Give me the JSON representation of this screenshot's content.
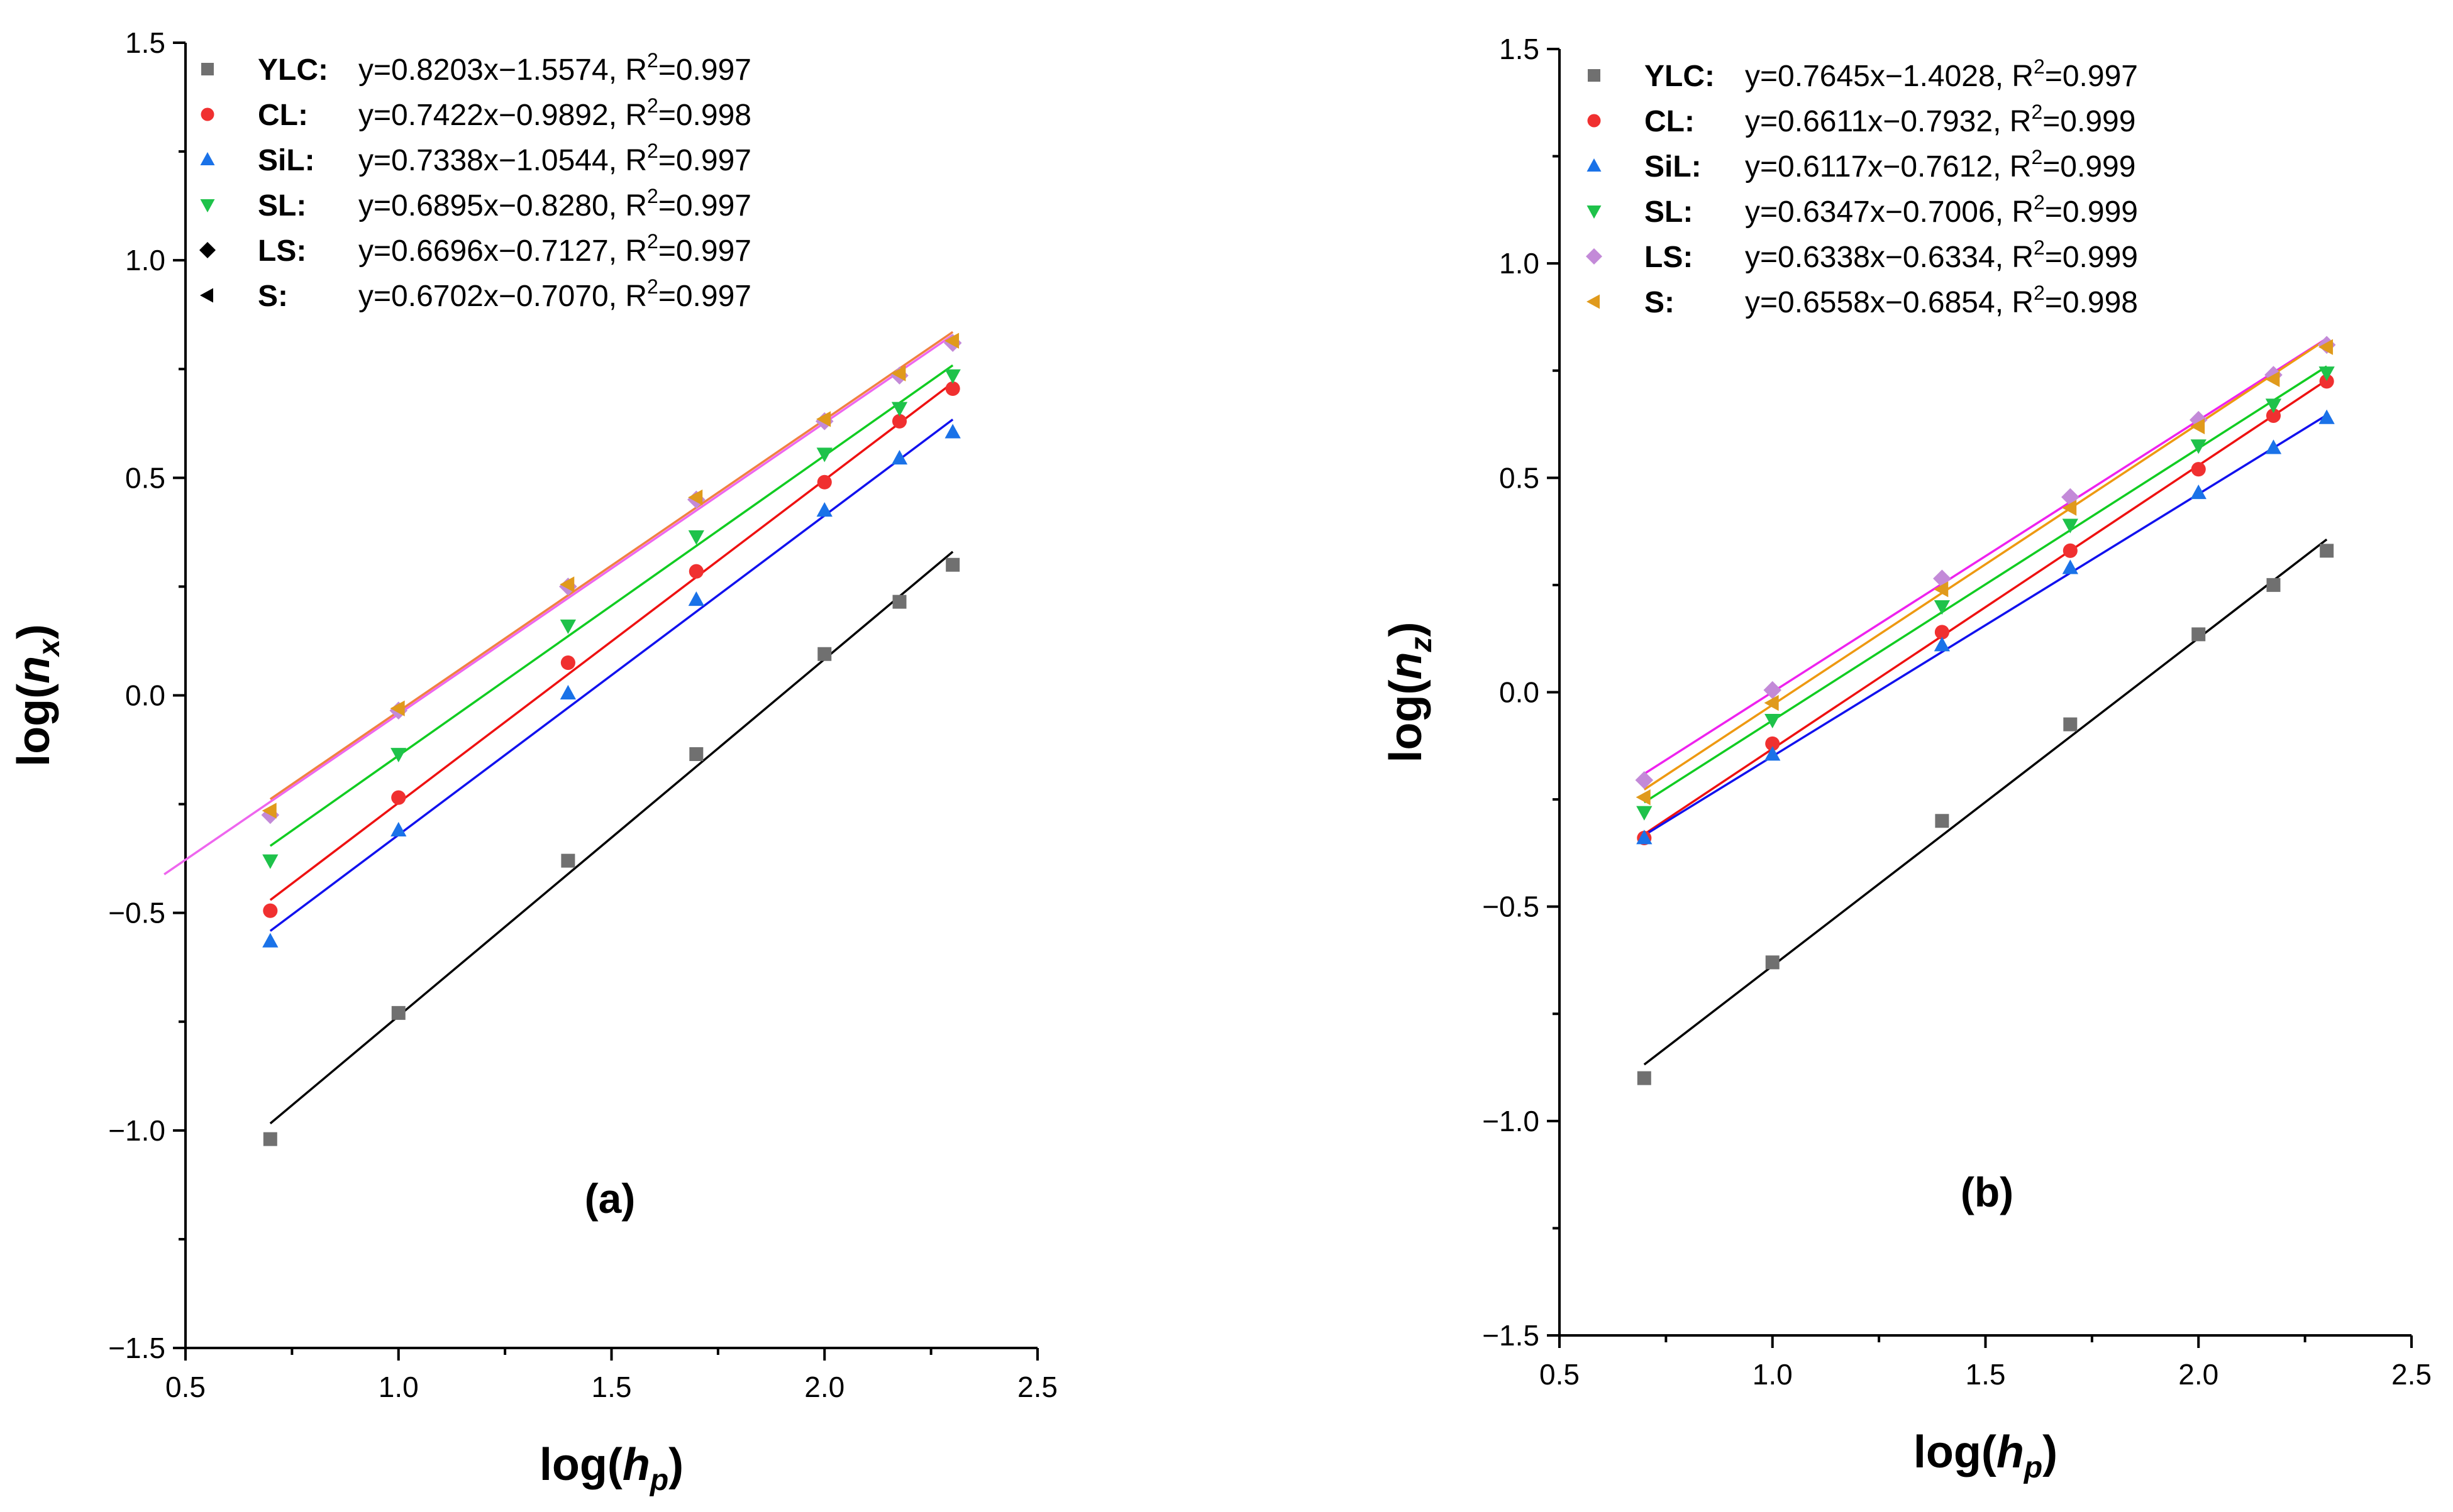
{
  "chart_data": [
    {
      "type": "scatter",
      "panel_label": "(a)",
      "xlabel_pre": "log(",
      "xlabel_var": "h",
      "xlabel_sub": "p",
      "xlabel_post": ")",
      "ylabel_pre": "log(",
      "ylabel_var": "n",
      "ylabel_sub": "x",
      "ylabel_post": ")",
      "xlim": [
        0.5,
        2.5
      ],
      "ylim": [
        -1.5,
        1.5
      ],
      "xticks": [
        "0.5",
        "1.0",
        "1.5",
        "2.0",
        "2.5"
      ],
      "yticks": [
        "-1.5",
        "-1.0",
        "-0.5",
        "0.0",
        "0.5",
        "1.0",
        "1.5"
      ],
      "legend_position": "top-left",
      "x": [
        0.699,
        1.0,
        1.398,
        1.699,
        2.0,
        2.176,
        2.301
      ],
      "series": [
        {
          "name": "YLC:",
          "marker": "square",
          "color": "#707070",
          "line_color": "#000000",
          "equation": "y=0.8203x−1.5574, R",
          "r2": "=0.997",
          "slope": 0.8203,
          "intercept": -1.5574,
          "values": [
            -1.02,
            -0.73,
            -0.38,
            -0.135,
            0.095,
            0.215,
            0.3
          ]
        },
        {
          "name": "CL:",
          "marker": "circle",
          "color": "#f03030",
          "line_color": "#ee1111",
          "equation": "y=0.7422x−0.9892, R",
          "r2": "=0.998",
          "slope": 0.7422,
          "intercept": -0.9892,
          "values": [
            -0.495,
            -0.235,
            0.075,
            0.285,
            0.49,
            0.63,
            0.705
          ]
        },
        {
          "name": "SiL:",
          "marker": "triangle-up",
          "color": "#1a72e8",
          "line_color": "#1111ee",
          "equation": "y=0.7338x−1.0544, R",
          "r2": "=0.997",
          "slope": 0.7338,
          "intercept": -1.0544,
          "values": [
            -0.565,
            -0.31,
            0.005,
            0.22,
            0.425,
            0.545,
            0.605
          ]
        },
        {
          "name": "SL:",
          "marker": "triangle-down",
          "color": "#1ec24a",
          "line_color": "#11cc22",
          "equation": "y=0.6895x−0.8280, R",
          "r2": "=0.997",
          "slope": 0.6895,
          "intercept": -0.828,
          "values": [
            -0.38,
            -0.135,
            0.16,
            0.365,
            0.555,
            0.66,
            0.735
          ]
        },
        {
          "name": "LS:",
          "marker": "diamond",
          "color": "#000000",
          "point_color": "#c38ad8",
          "line_color": "#ee66ee",
          "equation": "y=0.6696x−0.7127, R",
          "r2": "=0.997",
          "slope": 0.6696,
          "intercept": -0.7127,
          "line_x0": 0.45,
          "values": [
            -0.275,
            -0.035,
            0.25,
            0.45,
            0.63,
            0.735,
            0.81
          ]
        },
        {
          "name": "S:",
          "marker": "triangle-left",
          "color": "#000000",
          "point_color": "#e09a1c",
          "line_color": "#f08040",
          "equation": "y=0.6702x−0.7070, R",
          "r2": "=0.997",
          "slope": 0.6702,
          "intercept": -0.707,
          "values": [
            -0.265,
            -0.03,
            0.255,
            0.455,
            0.635,
            0.74,
            0.815
          ]
        }
      ]
    },
    {
      "type": "scatter",
      "panel_label": "(b)",
      "xlabel_pre": "log(",
      "xlabel_var": "h",
      "xlabel_sub": "p",
      "xlabel_post": ")",
      "ylabel_pre": "log(",
      "ylabel_var": "n",
      "ylabel_sub": "z",
      "ylabel_post": ")",
      "xlim": [
        0.5,
        2.5
      ],
      "ylim": [
        -1.5,
        1.5
      ],
      "xticks": [
        "0.5",
        "1.0",
        "1.5",
        "2.0",
        "2.5"
      ],
      "yticks": [
        "-1.5",
        "-1.0",
        "-0.5",
        "0.0",
        "0.5",
        "1.0",
        "1.5"
      ],
      "legend_position": "top-left",
      "x": [
        0.699,
        1.0,
        1.398,
        1.699,
        2.0,
        2.176,
        2.301
      ],
      "series": [
        {
          "name": "YLC:",
          "marker": "square",
          "color": "#707070",
          "line_color": "#000000",
          "equation": "y=0.7645x−1.4028, R",
          "r2": "=0.997",
          "slope": 0.7645,
          "intercept": -1.4028,
          "values": [
            -0.9,
            -0.63,
            -0.3,
            -0.075,
            0.135,
            0.25,
            0.33
          ]
        },
        {
          "name": "CL:",
          "marker": "circle",
          "color": "#f03030",
          "line_color": "#ee1111",
          "equation": "y=0.6611x−0.7932, R",
          "r2": "=0.999",
          "slope": 0.6611,
          "intercept": -0.7932,
          "values": [
            -0.34,
            -0.12,
            0.14,
            0.33,
            0.52,
            0.645,
            0.725
          ]
        },
        {
          "name": "SiL:",
          "marker": "triangle-up",
          "color": "#1a72e8",
          "line_color": "#1111ee",
          "equation": "y=0.6117x−0.7612, R",
          "r2": "=0.999",
          "slope": 0.6117,
          "intercept": -0.7612,
          "values": [
            -0.34,
            -0.145,
            0.11,
            0.29,
            0.465,
            0.57,
            0.64
          ]
        },
        {
          "name": "SL:",
          "marker": "triangle-down",
          "color": "#1ec24a",
          "line_color": "#11cc22",
          "equation": "y=0.6347x−0.7006, R",
          "r2": "=0.999",
          "slope": 0.6347,
          "intercept": -0.7006,
          "values": [
            -0.28,
            -0.065,
            0.2,
            0.39,
            0.575,
            0.67,
            0.745
          ]
        },
        {
          "name": "LS:",
          "marker": "diamond",
          "color": "#c38ad8",
          "line_color": "#ee22ee",
          "equation": "y=0.6338x−0.6334, R",
          "r2": "=0.999",
          "slope": 0.6338,
          "intercept": -0.6334,
          "values": [
            -0.205,
            0.005,
            0.265,
            0.455,
            0.635,
            0.74,
            0.81
          ]
        },
        {
          "name": "S:",
          "marker": "triangle-left",
          "color": "#e09a1c",
          "line_color": "#ee9911",
          "equation": "y=0.6558x−0.6854, R",
          "r2": "=0.998",
          "slope": 0.6558,
          "intercept": -0.6854,
          "values": [
            -0.245,
            -0.025,
            0.24,
            0.43,
            0.62,
            0.73,
            0.805
          ]
        }
      ]
    }
  ]
}
